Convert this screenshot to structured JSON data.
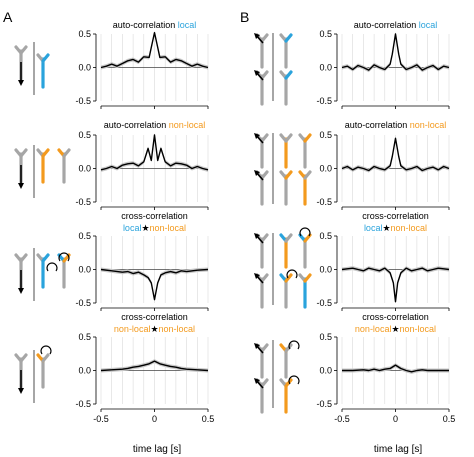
{
  "panel_labels": [
    "A",
    "B"
  ],
  "colors": {
    "local": "#2aa3dc",
    "nonlocal": "#f39a1e",
    "gray": "#a6a6a6",
    "line": "#000000",
    "band": "#c8c8c8"
  },
  "xlabel": "time lag [s]",
  "ticks": {
    "x": [
      "-0.5",
      "0",
      "0.5"
    ],
    "y": [
      "0.5",
      "0.0",
      "-0.5"
    ]
  },
  "titles": [
    {
      "l1": "",
      "l1_parts": [
        {
          "t": "auto-correlation ",
          "c": "k"
        },
        {
          "t": "local",
          "c": "l"
        }
      ],
      "l2_parts": []
    },
    {
      "l1": "",
      "l1_parts": [
        {
          "t": "auto-correlation ",
          "c": "k"
        },
        {
          "t": "non-local",
          "c": "n"
        }
      ],
      "l2_parts": []
    },
    {
      "l1_parts": [
        {
          "t": "cross-correlation",
          "c": "k"
        }
      ],
      "l2_parts": [
        {
          "t": "local",
          "c": "l"
        },
        {
          "t": "★",
          "c": "k"
        },
        {
          "t": "non-local",
          "c": "n"
        }
      ]
    },
    {
      "l1_parts": [
        {
          "t": "cross-correlation",
          "c": "k"
        }
      ],
      "l2_parts": [
        {
          "t": "non-local",
          "c": "n"
        },
        {
          "t": "★",
          "c": "k"
        },
        {
          "t": "non-local",
          "c": "n"
        }
      ]
    }
  ],
  "chart_data": [
    {
      "panel": "A",
      "row": 1,
      "type": "line",
      "ylim": [
        -0.5,
        0.5
      ],
      "xlim": [
        -0.5,
        0.5
      ],
      "x": [
        -0.5,
        -0.45,
        -0.4,
        -0.35,
        -0.3,
        -0.25,
        -0.2,
        -0.15,
        -0.1,
        -0.05,
        -0.03,
        0,
        0.03,
        0.05,
        0.1,
        0.15,
        0.2,
        0.25,
        0.3,
        0.35,
        0.4,
        0.45,
        0.5
      ],
      "y": [
        0.0,
        0.02,
        0.05,
        0.02,
        0.06,
        0.1,
        0.12,
        0.08,
        0.16,
        0.15,
        0.3,
        0.52,
        0.3,
        0.15,
        0.16,
        0.08,
        0.12,
        0.1,
        0.06,
        0.02,
        0.05,
        0.02,
        0.0
      ]
    },
    {
      "panel": "A",
      "row": 2,
      "type": "line",
      "ylim": [
        -0.5,
        0.5
      ],
      "xlim": [
        -0.5,
        0.5
      ],
      "x": [
        -0.5,
        -0.45,
        -0.4,
        -0.35,
        -0.3,
        -0.25,
        -0.2,
        -0.15,
        -0.1,
        -0.06,
        -0.03,
        0,
        0.03,
        0.06,
        0.1,
        0.15,
        0.2,
        0.25,
        0.3,
        0.35,
        0.4,
        0.45,
        0.5
      ],
      "y": [
        -0.02,
        0.0,
        0.03,
        0.0,
        0.05,
        0.07,
        0.08,
        0.04,
        0.1,
        0.3,
        0.12,
        0.5,
        0.12,
        0.3,
        0.1,
        0.04,
        0.08,
        0.07,
        0.05,
        0.0,
        0.03,
        0.0,
        -0.02
      ]
    },
    {
      "panel": "A",
      "row": 3,
      "type": "line",
      "ylim": [
        -0.5,
        0.5
      ],
      "xlim": [
        -0.5,
        0.5
      ],
      "x": [
        -0.5,
        -0.4,
        -0.3,
        -0.25,
        -0.2,
        -0.15,
        -0.1,
        -0.06,
        -0.03,
        0,
        0.03,
        0.06,
        0.1,
        0.15,
        0.2,
        0.25,
        0.3,
        0.4,
        0.5
      ],
      "y": [
        0.0,
        -0.02,
        -0.04,
        -0.03,
        -0.06,
        -0.04,
        -0.08,
        -0.12,
        -0.2,
        -0.45,
        -0.2,
        -0.08,
        -0.05,
        -0.03,
        -0.05,
        -0.02,
        -0.03,
        -0.01,
        0.0
      ]
    },
    {
      "panel": "A",
      "row": 4,
      "type": "line",
      "ylim": [
        -0.5,
        0.5
      ],
      "xlim": [
        -0.5,
        0.5
      ],
      "x": [
        -0.5,
        -0.4,
        -0.3,
        -0.25,
        -0.2,
        -0.15,
        -0.1,
        -0.05,
        0,
        0.05,
        0.1,
        0.15,
        0.2,
        0.25,
        0.3,
        0.4,
        0.5
      ],
      "y": [
        0.0,
        0.01,
        0.02,
        0.03,
        0.05,
        0.06,
        0.08,
        0.1,
        0.14,
        0.1,
        0.08,
        0.06,
        0.05,
        0.03,
        0.02,
        0.01,
        0.0
      ]
    },
    {
      "panel": "B",
      "row": 1,
      "type": "line",
      "ylim": [
        -0.5,
        0.5
      ],
      "xlim": [
        -0.5,
        0.5
      ],
      "x": [
        -0.5,
        -0.45,
        -0.4,
        -0.35,
        -0.3,
        -0.25,
        -0.2,
        -0.15,
        -0.1,
        -0.05,
        -0.03,
        0,
        0.03,
        0.05,
        0.1,
        0.15,
        0.2,
        0.25,
        0.3,
        0.35,
        0.4,
        0.45,
        0.5
      ],
      "y": [
        0.0,
        0.02,
        -0.03,
        0.03,
        0.0,
        -0.04,
        0.04,
        0.0,
        -0.03,
        0.05,
        0.2,
        0.5,
        0.2,
        0.05,
        -0.03,
        0.0,
        0.04,
        -0.04,
        0.0,
        0.03,
        -0.03,
        0.02,
        0.0
      ]
    },
    {
      "panel": "B",
      "row": 2,
      "type": "line",
      "ylim": [
        -0.5,
        0.5
      ],
      "xlim": [
        -0.5,
        0.5
      ],
      "x": [
        -0.5,
        -0.45,
        -0.4,
        -0.35,
        -0.3,
        -0.25,
        -0.2,
        -0.15,
        -0.1,
        -0.05,
        -0.03,
        0,
        0.03,
        0.05,
        0.1,
        0.15,
        0.2,
        0.25,
        0.3,
        0.35,
        0.4,
        0.45,
        0.5
      ],
      "y": [
        0.0,
        0.03,
        -0.02,
        0.02,
        0.0,
        -0.03,
        0.03,
        0.0,
        -0.02,
        0.04,
        0.18,
        0.45,
        0.18,
        0.04,
        -0.02,
        0.0,
        0.03,
        -0.03,
        0.0,
        0.02,
        -0.02,
        0.03,
        0.0
      ]
    },
    {
      "panel": "B",
      "row": 3,
      "type": "line",
      "ylim": [
        -0.5,
        0.5
      ],
      "xlim": [
        -0.5,
        0.5
      ],
      "x": [
        -0.5,
        -0.45,
        -0.4,
        -0.35,
        -0.3,
        -0.25,
        -0.2,
        -0.15,
        -0.1,
        -0.05,
        -0.02,
        0,
        0.02,
        0.05,
        0.1,
        0.15,
        0.2,
        0.25,
        0.3,
        0.35,
        0.4,
        0.45,
        0.5
      ],
      "y": [
        0.0,
        0.01,
        0.02,
        0.0,
        -0.02,
        0.02,
        0.0,
        -0.02,
        0.02,
        -0.05,
        -0.2,
        -0.48,
        -0.2,
        -0.05,
        0.02,
        -0.02,
        0.0,
        0.02,
        -0.02,
        0.0,
        0.02,
        0.01,
        0.0
      ]
    },
    {
      "panel": "B",
      "row": 4,
      "type": "line",
      "ylim": [
        -0.5,
        0.5
      ],
      "xlim": [
        -0.5,
        0.5
      ],
      "x": [
        -0.5,
        -0.4,
        -0.3,
        -0.25,
        -0.2,
        -0.15,
        -0.1,
        -0.05,
        0,
        0.05,
        0.1,
        0.15,
        0.2,
        0.25,
        0.3,
        0.4,
        0.5
      ],
      "y": [
        0.0,
        0.0,
        0.01,
        0.0,
        0.02,
        0.0,
        0.02,
        0.03,
        0.08,
        0.03,
        0.0,
        -0.02,
        0.0,
        0.01,
        0.0,
        0.0,
        0.0
      ]
    }
  ]
}
